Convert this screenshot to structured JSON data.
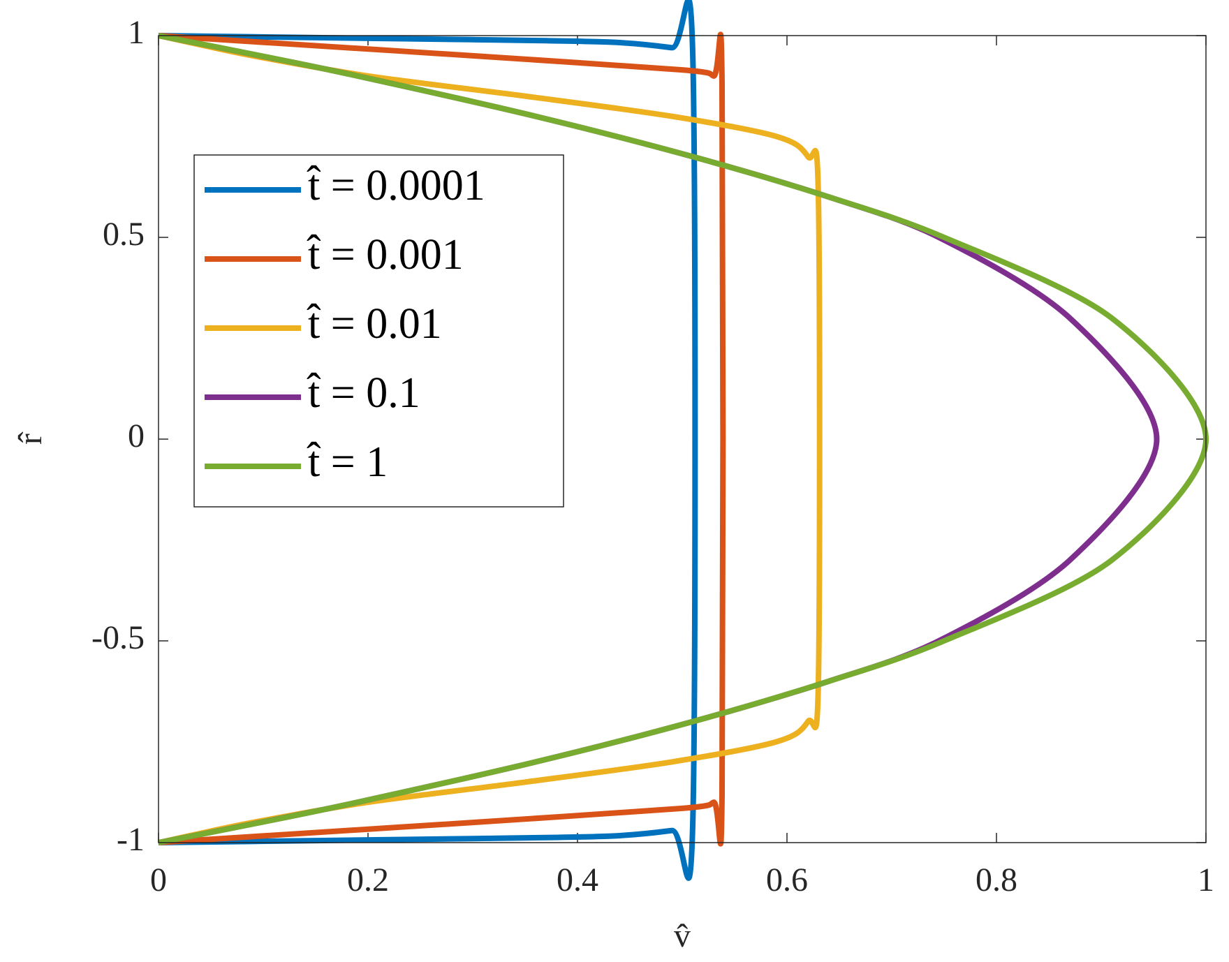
{
  "chart_data": {
    "type": "line",
    "x_label": "v̂",
    "y_label": "r̂",
    "xlim": [
      0,
      1
    ],
    "ylim": [
      -1,
      1
    ],
    "xticks": [
      0,
      0.2,
      0.4,
      0.6,
      0.8,
      1
    ],
    "yticks": [
      -1,
      -0.5,
      0,
      0.5,
      1
    ],
    "legend": "upper left",
    "series": [
      {
        "name": "t̂ = 0.0001",
        "color": "#0072BD",
        "y": [
          -1,
          -0.995,
          -0.99,
          -0.984,
          -0.97,
          -0.957,
          0.957,
          0.97,
          0.984,
          0.99,
          0.995,
          1
        ],
        "values": [
          0,
          0.15,
          0.3,
          0.43,
          0.49,
          0.51,
          0.51,
          0.49,
          0.43,
          0.3,
          0.15,
          0
        ]
      },
      {
        "name": "t̂ = 0.001",
        "color": "#D95319",
        "y": [
          -1,
          -0.98,
          -0.95,
          -0.915,
          -0.9,
          -0.88,
          0.88,
          0.9,
          0.915,
          0.95,
          0.98,
          1
        ],
        "values": [
          0,
          0.12,
          0.3,
          0.5,
          0.53,
          0.538,
          0.538,
          0.53,
          0.5,
          0.3,
          0.12,
          0
        ]
      },
      {
        "name": "t̂ = 0.01",
        "color": "#EDB120",
        "y": [
          -1,
          -0.98,
          -0.95,
          -0.9,
          -0.85,
          -0.8,
          -0.75,
          -0.7,
          -0.6,
          0.6,
          0.7,
          0.75,
          0.8,
          0.85,
          0.9,
          0.95,
          0.98,
          1
        ],
        "values": [
          0,
          0.035,
          0.09,
          0.2,
          0.35,
          0.49,
          0.59,
          0.62,
          0.63,
          0.63,
          0.62,
          0.59,
          0.49,
          0.35,
          0.2,
          0.09,
          0.035,
          0
        ]
      },
      {
        "name": "t̂ = 0.1",
        "color": "#7E2F8E",
        "y": [
          -1,
          -0.95,
          -0.9,
          -0.8,
          -0.7,
          -0.6,
          -0.5,
          -0.3,
          0,
          0.3,
          0.5,
          0.6,
          0.7,
          0.8,
          0.9,
          0.95,
          1
        ],
        "values": [
          0,
          0.097,
          0.19,
          0.36,
          0.51,
          0.64,
          0.745,
          0.87,
          0.953,
          0.87,
          0.745,
          0.64,
          0.51,
          0.36,
          0.19,
          0.097,
          0
        ]
      },
      {
        "name": "t̂ = 1",
        "color": "#77AC30",
        "y": [
          -1,
          -0.95,
          -0.9,
          -0.8,
          -0.7,
          -0.6,
          -0.5,
          -0.3,
          0,
          0.3,
          0.5,
          0.6,
          0.7,
          0.8,
          0.9,
          0.95,
          1
        ],
        "values": [
          0,
          0.0975,
          0.19,
          0.36,
          0.51,
          0.64,
          0.75,
          0.91,
          1,
          0.91,
          0.75,
          0.64,
          0.51,
          0.36,
          0.19,
          0.0975,
          0
        ]
      }
    ]
  }
}
